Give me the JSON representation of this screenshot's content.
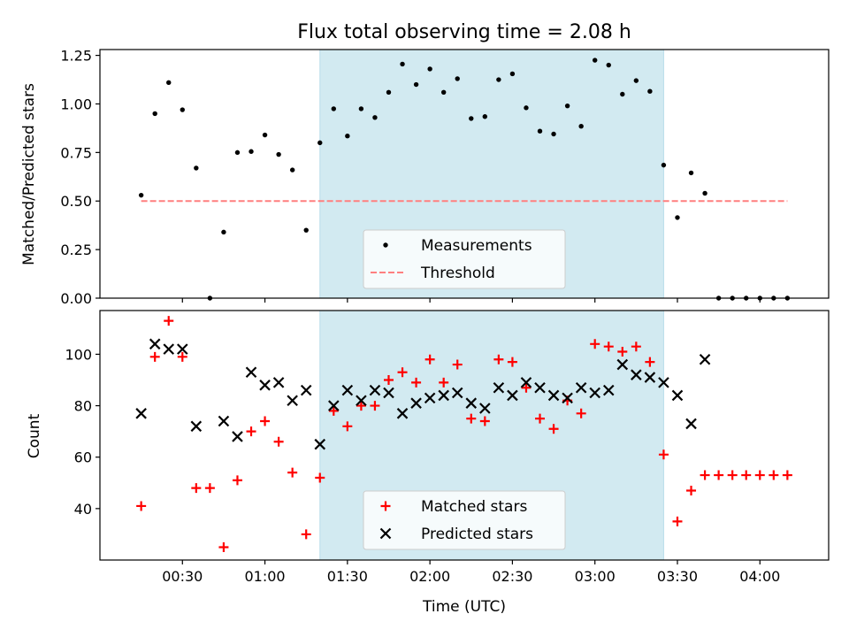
{
  "chart_data": [
    {
      "type": "scatter",
      "title": "Flux total observing time = 2.08 h",
      "xlabel": "",
      "ylabel": "Matched/Predicted stars",
      "ylim": [
        0,
        1.28
      ],
      "yticks": [
        0,
        0.25,
        0.5,
        0.75,
        1.0,
        1.25
      ],
      "ytick_labels": [
        "0.00",
        "0.25",
        "0.50",
        "0.75",
        "1.00",
        "1.25"
      ],
      "x_format": "time HH:MM (UTC)",
      "shaded_interval": {
        "start": "01:20",
        "end": "03:25",
        "color": "#add8e6"
      },
      "series": [
        {
          "name": "Measurements",
          "marker": "dot",
          "color": "#000000",
          "points": [
            [
              "00:15",
              0.53
            ],
            [
              "00:20",
              0.95
            ],
            [
              "00:25",
              1.11
            ],
            [
              "00:30",
              0.97
            ],
            [
              "00:35",
              0.67
            ],
            [
              "00:40",
              0.0
            ],
            [
              "00:45",
              0.34
            ],
            [
              "00:50",
              0.75
            ],
            [
              "00:55",
              0.755
            ],
            [
              "01:00",
              0.84
            ],
            [
              "01:05",
              0.74
            ],
            [
              "01:10",
              0.66
            ],
            [
              "01:15",
              0.35
            ],
            [
              "01:20",
              0.8
            ],
            [
              "01:25",
              0.975
            ],
            [
              "01:30",
              0.835
            ],
            [
              "01:35",
              0.975
            ],
            [
              "01:40",
              0.93
            ],
            [
              "01:45",
              1.06
            ],
            [
              "01:50",
              1.205
            ],
            [
              "01:55",
              1.1
            ],
            [
              "02:00",
              1.18
            ],
            [
              "02:05",
              1.06
            ],
            [
              "02:10",
              1.13
            ],
            [
              "02:15",
              0.925
            ],
            [
              "02:20",
              0.935
            ],
            [
              "02:25",
              1.125
            ],
            [
              "02:30",
              1.155
            ],
            [
              "02:35",
              0.98
            ],
            [
              "02:40",
              0.86
            ],
            [
              "02:45",
              0.845
            ],
            [
              "02:50",
              0.99
            ],
            [
              "02:55",
              0.885
            ],
            [
              "03:00",
              1.225
            ],
            [
              "03:05",
              1.2
            ],
            [
              "03:10",
              1.05
            ],
            [
              "03:15",
              1.12
            ],
            [
              "03:20",
              1.065
            ],
            [
              "03:25",
              0.685
            ],
            [
              "03:30",
              0.415
            ],
            [
              "03:35",
              0.645
            ],
            [
              "03:40",
              0.54
            ],
            [
              "03:45",
              0.0
            ],
            [
              "03:50",
              0.0
            ],
            [
              "03:55",
              0.0
            ],
            [
              "04:00",
              0.0
            ],
            [
              "04:05",
              0.0
            ],
            [
              "04:10",
              0.0
            ]
          ]
        },
        {
          "name": "Threshold",
          "marker": "dashed-line",
          "color": "#ff7f7f",
          "points": [
            [
              "00:15",
              0.5
            ],
            [
              "04:10",
              0.5
            ]
          ]
        }
      ],
      "legend": {
        "placement": "lower-center"
      }
    },
    {
      "type": "scatter",
      "title": "",
      "xlabel": "Time (UTC)",
      "ylabel": "Count",
      "ylim": [
        20,
        117
      ],
      "yticks": [
        40,
        60,
        80,
        100
      ],
      "ytick_labels": [
        "40",
        "60",
        "80",
        "100"
      ],
      "xticks": [
        "00:30",
        "01:00",
        "01:30",
        "02:00",
        "02:30",
        "03:00",
        "03:30",
        "04:00"
      ],
      "x_format": "time HH:MM (UTC)",
      "shaded_interval": {
        "start": "01:20",
        "end": "03:25",
        "color": "#add8e6"
      },
      "series": [
        {
          "name": "Matched stars",
          "marker": "plus",
          "color": "#ff0000",
          "points": [
            [
              "00:15",
              41
            ],
            [
              "00:20",
              99
            ],
            [
              "00:25",
              113
            ],
            [
              "00:30",
              99
            ],
            [
              "00:35",
              48
            ],
            [
              "00:40",
              48
            ],
            [
              "00:45",
              25
            ],
            [
              "00:50",
              51
            ],
            [
              "00:55",
              70
            ],
            [
              "01:00",
              74
            ],
            [
              "01:05",
              66
            ],
            [
              "01:10",
              54
            ],
            [
              "01:15",
              30
            ],
            [
              "01:20",
              52
            ],
            [
              "01:25",
              78
            ],
            [
              "01:30",
              72
            ],
            [
              "01:35",
              80
            ],
            [
              "01:40",
              80
            ],
            [
              "01:45",
              90
            ],
            [
              "01:50",
              93
            ],
            [
              "01:55",
              89
            ],
            [
              "02:00",
              98
            ],
            [
              "02:05",
              89
            ],
            [
              "02:10",
              96
            ],
            [
              "02:15",
              75
            ],
            [
              "02:20",
              74
            ],
            [
              "02:25",
              98
            ],
            [
              "02:30",
              97
            ],
            [
              "02:35",
              87
            ],
            [
              "02:40",
              75
            ],
            [
              "02:45",
              71
            ],
            [
              "02:50",
              82
            ],
            [
              "02:55",
              77
            ],
            [
              "03:00",
              104
            ],
            [
              "03:05",
              103
            ],
            [
              "03:10",
              101
            ],
            [
              "03:15",
              103
            ],
            [
              "03:20",
              97
            ],
            [
              "03:25",
              61
            ],
            [
              "03:30",
              35
            ],
            [
              "03:35",
              47
            ],
            [
              "03:40",
              53
            ],
            [
              "03:45",
              53
            ],
            [
              "03:50",
              53
            ],
            [
              "03:55",
              53
            ],
            [
              "04:00",
              53
            ],
            [
              "04:05",
              53
            ],
            [
              "04:10",
              53
            ]
          ]
        },
        {
          "name": "Predicted stars",
          "marker": "x",
          "color": "#000000",
          "points": [
            [
              "00:15",
              77
            ],
            [
              "00:20",
              104
            ],
            [
              "00:25",
              102
            ],
            [
              "00:30",
              102
            ],
            [
              "00:35",
              72
            ],
            [
              "00:45",
              74
            ],
            [
              "00:50",
              68
            ],
            [
              "00:55",
              93
            ],
            [
              "01:00",
              88
            ],
            [
              "01:05",
              89
            ],
            [
              "01:10",
              82
            ],
            [
              "01:15",
              86
            ],
            [
              "01:20",
              65
            ],
            [
              "01:25",
              80
            ],
            [
              "01:30",
              86
            ],
            [
              "01:35",
              82
            ],
            [
              "01:40",
              86
            ],
            [
              "01:45",
              85
            ],
            [
              "01:50",
              77
            ],
            [
              "01:55",
              81
            ],
            [
              "02:00",
              83
            ],
            [
              "02:05",
              84
            ],
            [
              "02:10",
              85
            ],
            [
              "02:15",
              81
            ],
            [
              "02:20",
              79
            ],
            [
              "02:25",
              87
            ],
            [
              "02:30",
              84
            ],
            [
              "02:35",
              89
            ],
            [
              "02:40",
              87
            ],
            [
              "02:45",
              84
            ],
            [
              "02:50",
              83
            ],
            [
              "02:55",
              87
            ],
            [
              "03:00",
              85
            ],
            [
              "03:05",
              86
            ],
            [
              "03:10",
              96
            ],
            [
              "03:15",
              92
            ],
            [
              "03:20",
              91
            ],
            [
              "03:25",
              89
            ],
            [
              "03:30",
              84
            ],
            [
              "03:35",
              73
            ],
            [
              "03:40",
              98
            ]
          ]
        }
      ],
      "legend": {
        "placement": "lower-center"
      }
    }
  ]
}
